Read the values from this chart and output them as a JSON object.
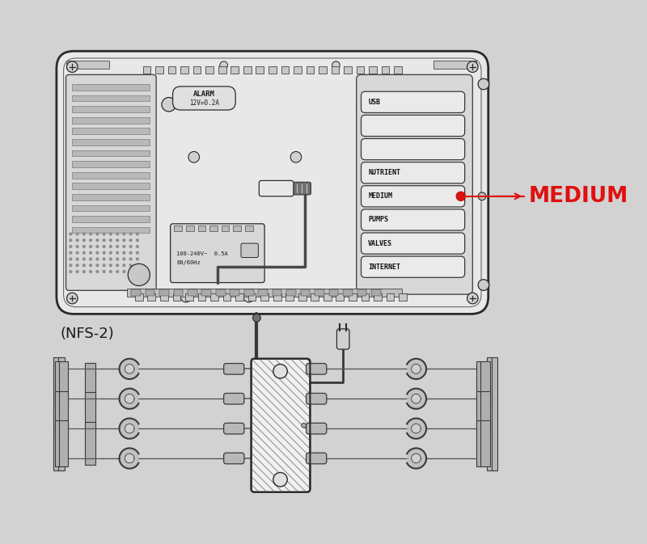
{
  "bg_color": "#d2d2d2",
  "outline_color": "#2a2a2a",
  "box_fc": "#e8e8e8",
  "panel_fc": "#dedede",
  "port_fc": "#ebebeb",
  "port_labels": [
    "USB",
    "",
    "",
    "NUTRIENT",
    "MEDIUM",
    "PUMPS",
    "VALVES",
    "INTERNET"
  ],
  "alarm_text": "ALARM",
  "alarm_sub": "12V=0.2A",
  "power_text": "100-240V~  0.5A",
  "power_sub": "60/60Hz",
  "label_medium": "MEDIUM",
  "label_nfs2": "(NFS-2)",
  "red_color": "#e01010",
  "hub_fc": "#ffffff",
  "hub_hatch_color": "#888888"
}
